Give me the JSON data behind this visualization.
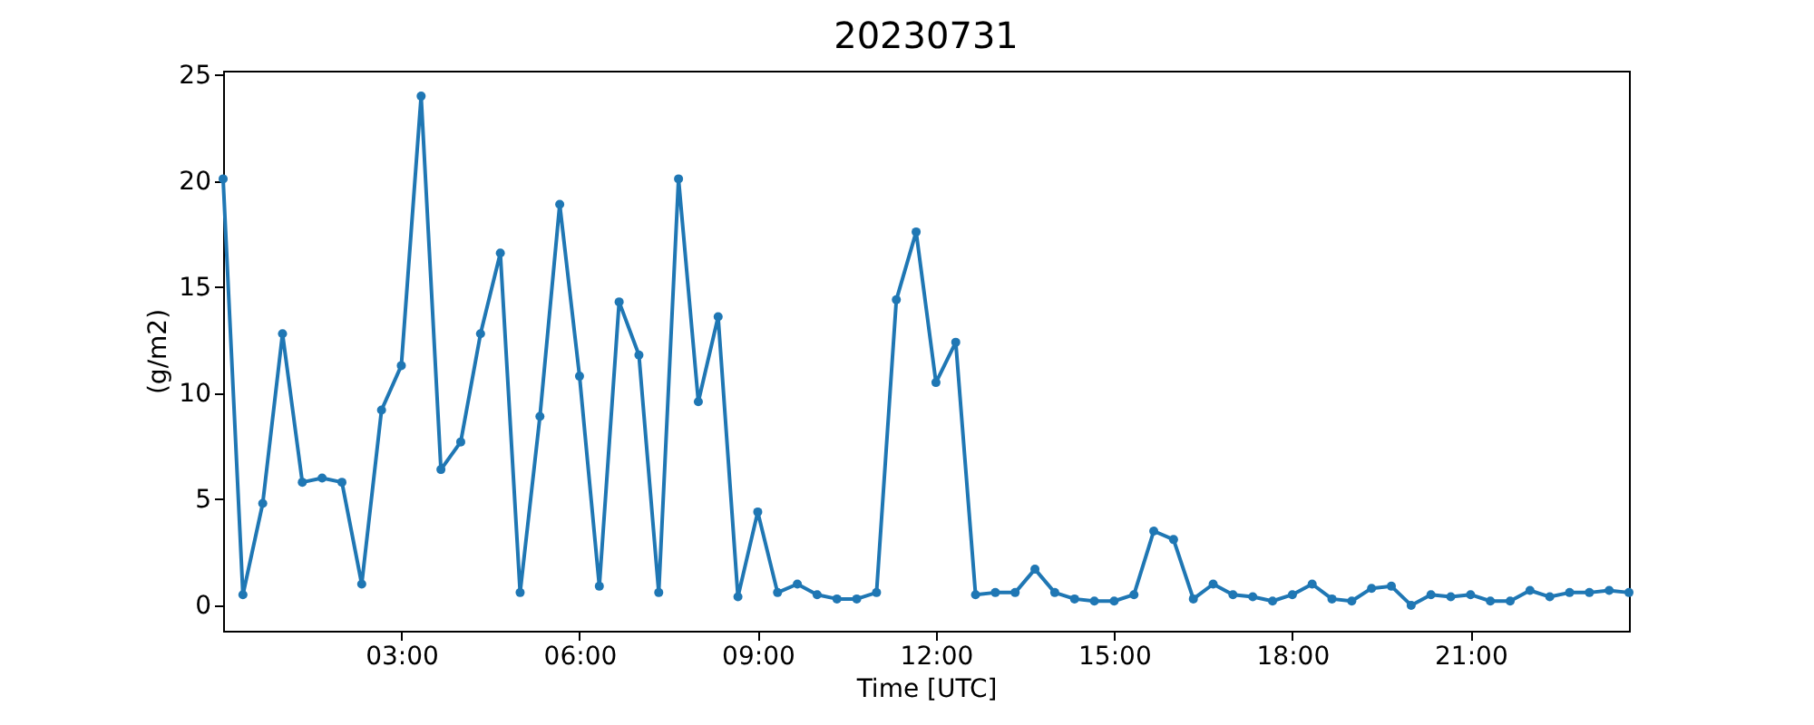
{
  "chart_data": {
    "type": "line",
    "title": "20230731",
    "xlabel": "Time [UTC]",
    "ylabel": "(g/m2)",
    "x": [
      "2023-07-31T00:00",
      "2023-07-31T00:20",
      "2023-07-31T00:40",
      "2023-07-31T01:00",
      "2023-07-31T01:20",
      "2023-07-31T01:40",
      "2023-07-31T02:00",
      "2023-07-31T02:20",
      "2023-07-31T02:40",
      "2023-07-31T03:00",
      "2023-07-31T03:20",
      "2023-07-31T03:40",
      "2023-07-31T04:00",
      "2023-07-31T04:20",
      "2023-07-31T04:40",
      "2023-07-31T05:00",
      "2023-07-31T05:20",
      "2023-07-31T05:40",
      "2023-07-31T06:00",
      "2023-07-31T06:20",
      "2023-07-31T06:40",
      "2023-07-31T07:00",
      "2023-07-31T07:20",
      "2023-07-31T07:40",
      "2023-07-31T08:00",
      "2023-07-31T08:20",
      "2023-07-31T08:40",
      "2023-07-31T09:00",
      "2023-07-31T09:20",
      "2023-07-31T09:40",
      "2023-07-31T10:00",
      "2023-07-31T10:20",
      "2023-07-31T10:40",
      "2023-07-31T11:00",
      "2023-07-31T11:20",
      "2023-07-31T11:40",
      "2023-07-31T12:00",
      "2023-07-31T12:20",
      "2023-07-31T12:40",
      "2023-07-31T13:00",
      "2023-07-31T13:20",
      "2023-07-31T13:40",
      "2023-07-31T14:00",
      "2023-07-31T14:20",
      "2023-07-31T14:40",
      "2023-07-31T15:00",
      "2023-07-31T15:20",
      "2023-07-31T15:40",
      "2023-07-31T16:00",
      "2023-07-31T16:20",
      "2023-07-31T16:40",
      "2023-07-31T17:00",
      "2023-07-31T17:20",
      "2023-07-31T17:40",
      "2023-07-31T18:00",
      "2023-07-31T18:20",
      "2023-07-31T18:40",
      "2023-07-31T19:00",
      "2023-07-31T19:20",
      "2023-07-31T19:40",
      "2023-07-31T20:00",
      "2023-07-31T20:20",
      "2023-07-31T20:40",
      "2023-07-31T21:00",
      "2023-07-31T21:20",
      "2023-07-31T21:40",
      "2023-07-31T22:00",
      "2023-07-31T22:20",
      "2023-07-31T22:40",
      "2023-07-31T23:00",
      "2023-07-31T23:20",
      "2023-07-31T23:40"
    ],
    "series": [
      {
        "color": "#1f77b4",
        "values": [
          20.1,
          0.5,
          4.8,
          12.8,
          5.8,
          6.0,
          5.8,
          1.0,
          9.2,
          11.3,
          24.0,
          6.4,
          7.7,
          12.8,
          16.6,
          0.6,
          8.9,
          18.9,
          10.8,
          0.9,
          14.3,
          11.8,
          0.6,
          20.1,
          9.6,
          13.6,
          0.4,
          4.4,
          0.6,
          1.0,
          0.5,
          0.3,
          0.3,
          0.6,
          14.4,
          17.6,
          10.5,
          12.4,
          0.5,
          0.6,
          0.6,
          1.7,
          0.6,
          0.3,
          0.2,
          0.2,
          0.5,
          3.5,
          3.1,
          0.3,
          1.0,
          0.5,
          0.4,
          0.2,
          0.5,
          1.0,
          0.3,
          0.2,
          0.8,
          0.9,
          0.0,
          0.5,
          0.4,
          0.5,
          0.2,
          0.2,
          0.7,
          0.4,
          0.6,
          0.6,
          0.7,
          0.6
        ]
      }
    ],
    "xlim": [
      "2023-07-31T00:00",
      "2023-07-31T23:40"
    ],
    "xticks": [
      {
        "value": "2023-07-31T03:00",
        "label": "03:00"
      },
      {
        "value": "2023-07-31T06:00",
        "label": "06:00"
      },
      {
        "value": "2023-07-31T09:00",
        "label": "09:00"
      },
      {
        "value": "2023-07-31T12:00",
        "label": "12:00"
      },
      {
        "value": "2023-07-31T15:00",
        "label": "15:00"
      },
      {
        "value": "2023-07-31T18:00",
        "label": "18:00"
      },
      {
        "value": "2023-07-31T21:00",
        "label": "21:00"
      }
    ],
    "ylim": [
      -1.2,
      25.2
    ],
    "yticks": [
      0,
      5,
      10,
      15,
      20,
      25
    ],
    "grid": false,
    "marker": "circle",
    "line_style": "solid"
  }
}
